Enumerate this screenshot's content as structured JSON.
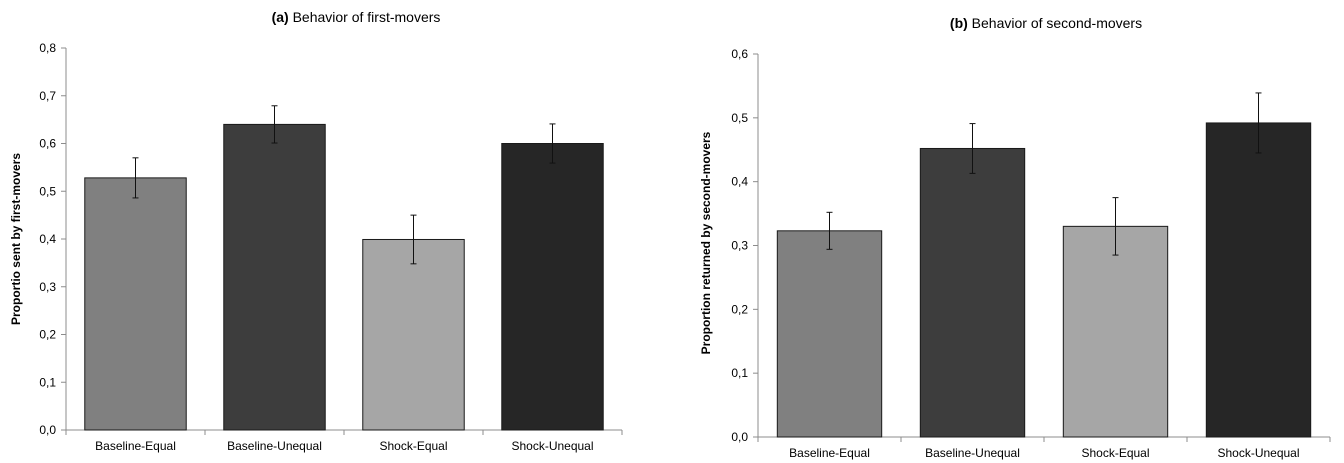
{
  "chart_data": [
    {
      "type": "bar",
      "title_prefix": "(a)",
      "title": "Behavior of first-movers",
      "xlabel": "",
      "ylabel": "Proportio sent by first-movers",
      "categories": [
        "Baseline-Equal",
        "Baseline-Unequal",
        "Shock-Equal",
        "Shock-Unequal"
      ],
      "values": [
        0.528,
        0.64,
        0.399,
        0.6
      ],
      "error": [
        0.042,
        0.039,
        0.051,
        0.041
      ],
      "colors": [
        "#808080",
        "#3d3d3d",
        "#a6a6a6",
        "#262626"
      ],
      "ylim": [
        0,
        0.8
      ],
      "yticks": [
        0.0,
        0.1,
        0.2,
        0.3,
        0.4,
        0.5,
        0.6,
        0.7,
        0.8
      ],
      "ytick_labels": [
        "0,0",
        "0,1",
        "0,2",
        "0,3",
        "0,4",
        "0,5",
        "0,6",
        "0,7",
        "0,8"
      ],
      "grid": false,
      "legend": "none"
    },
    {
      "type": "bar",
      "title_prefix": "(b)",
      "title": "Behavior of second-movers",
      "xlabel": "",
      "ylabel": "Proportion returned by second-movers",
      "categories": [
        "Baseline-Equal",
        "Baseline-Unequal",
        "Shock-Equal",
        "Shock-Unequal"
      ],
      "values": [
        0.323,
        0.452,
        0.33,
        0.492
      ],
      "error": [
        0.029,
        0.039,
        0.045,
        0.047
      ],
      "colors": [
        "#808080",
        "#3d3d3d",
        "#a6a6a6",
        "#262626"
      ],
      "ylim": [
        0,
        0.6
      ],
      "yticks": [
        0.0,
        0.1,
        0.2,
        0.3,
        0.4,
        0.5,
        0.6
      ],
      "ytick_labels": [
        "0,0",
        "0,1",
        "0,2",
        "0,3",
        "0,4",
        "0,5",
        "0,6"
      ],
      "grid": false,
      "legend": "none"
    }
  ]
}
